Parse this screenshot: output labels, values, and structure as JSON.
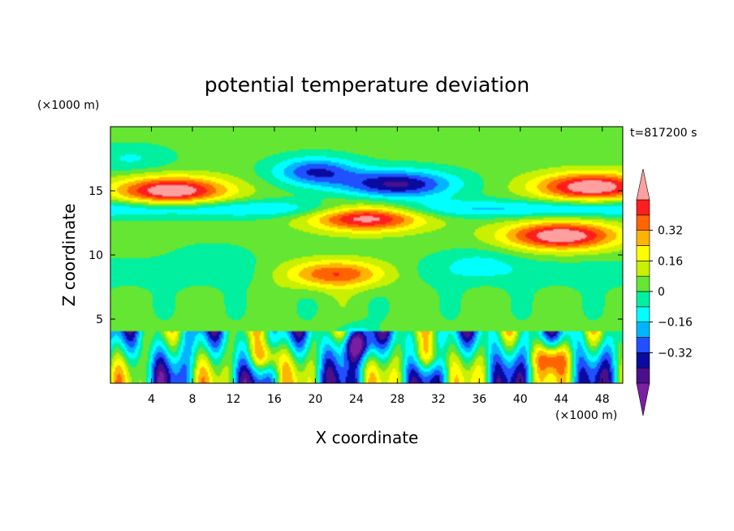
{
  "chart_data": {
    "type": "heatmap",
    "title": "potential temperature deviation",
    "xlabel": "X coordinate",
    "ylabel": "Z coordinate",
    "x_unit": "(×1000 m)",
    "y_unit": "(×1000 m)",
    "time_label": "t=817200 s",
    "xlim": [
      0,
      50
    ],
    "ylim": [
      0,
      20
    ],
    "x_ticks": [
      4,
      8,
      12,
      16,
      20,
      24,
      28,
      32,
      36,
      40,
      44,
      48
    ],
    "y_ticks": [
      5,
      10,
      15
    ],
    "colorbar": {
      "levels": [
        -0.48,
        -0.4,
        -0.32,
        -0.24,
        -0.16,
        -0.08,
        0,
        0.08,
        0.16,
        0.24,
        0.32,
        0.4,
        0.48
      ],
      "tick_labels": [
        "0.32",
        "0.16",
        "0",
        "−0.16",
        "−0.32"
      ],
      "tick_values": [
        0.32,
        0.16,
        0,
        -0.16,
        -0.32
      ],
      "colors": [
        "#7a1fa2",
        "#4b0f8c",
        "#0a0aa0",
        "#2050ff",
        "#00b4ff",
        "#00ffff",
        "#00f0a0",
        "#64e632",
        "#c8f000",
        "#ffff00",
        "#ffb400",
        "#ff6400",
        "#ff1e1e",
        "#ffa0a0"
      ]
    },
    "features": [
      {
        "x": 6,
        "z": 15.0,
        "v": 0.55
      },
      {
        "x": 25,
        "z": 13.0,
        "v": 0.55
      },
      {
        "x": 47,
        "z": 15.3,
        "v": 0.55
      },
      {
        "x": 44,
        "z": 11.5,
        "v": 0.55
      },
      {
        "x": 22,
        "z": 8.5,
        "v": 0.45
      },
      {
        "x": 28,
        "z": 15.5,
        "v": -0.45
      },
      {
        "x": 20,
        "z": 16.5,
        "v": -0.35
      },
      {
        "x": 24,
        "z": 3.0,
        "v": -0.42
      },
      {
        "x": 15,
        "z": 2.0,
        "v": 0.4
      },
      {
        "x": 43,
        "z": 2.0,
        "v": 0.4
      },
      {
        "x": 31,
        "z": 2.0,
        "v": 0.3
      },
      {
        "x": 2,
        "z": 17.5,
        "v": -0.12
      },
      {
        "x": 10,
        "z": 10.0,
        "v": -0.06
      },
      {
        "x": 36,
        "z": 9.5,
        "v": -0.1
      }
    ]
  }
}
